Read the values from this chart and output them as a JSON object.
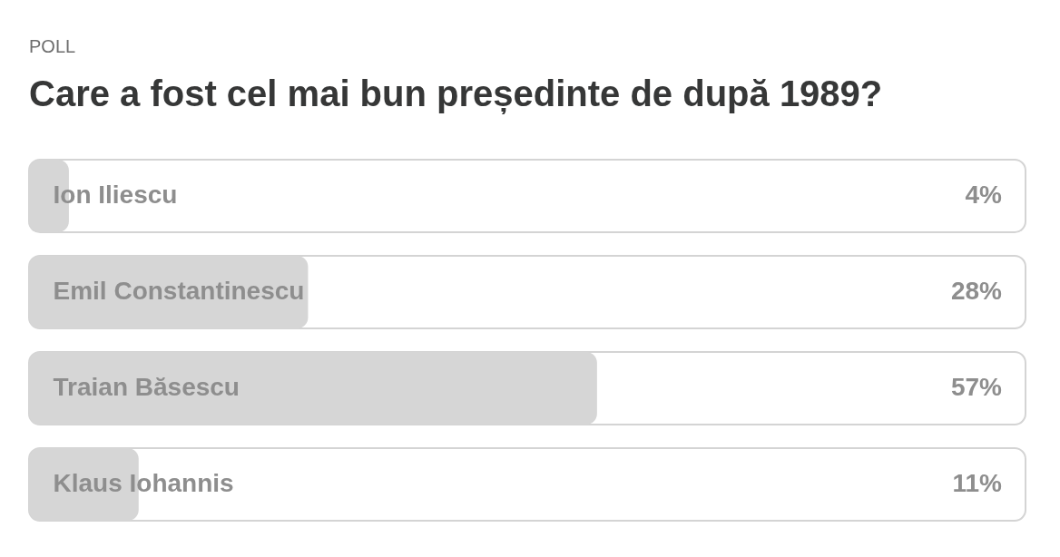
{
  "chart_data": {
    "type": "bar",
    "orientation": "horizontal",
    "subtitle": "POLL",
    "title": "Care a fost cel mai bun președinte de după 1989?",
    "categories": [
      "Ion Iliescu",
      "Emil Constantinescu",
      "Traian Băsescu",
      "Klaus Iohannis"
    ],
    "values": [
      4,
      28,
      57,
      11
    ],
    "value_labels": [
      "4%",
      "28%",
      "57%",
      "11%"
    ],
    "color": "#d6d6d6",
    "xlim": [
      0,
      100
    ],
    "tick_labels": "y"
  }
}
